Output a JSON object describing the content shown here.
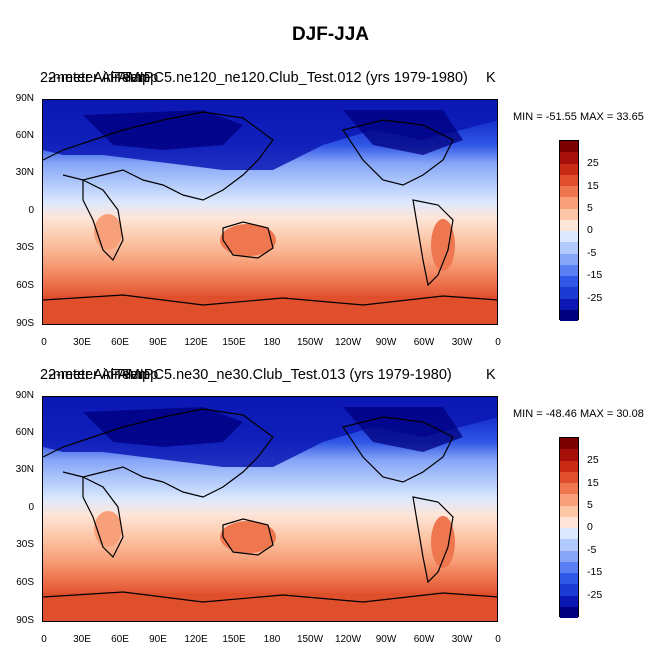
{
  "figure_title": "DJF-JJA",
  "palette": [
    "#00007f",
    "#0c18b4",
    "#1c3ad4",
    "#3157e6",
    "#5a7ff2",
    "#86a5f7",
    "#b1c9fb",
    "#dbe8fd",
    "#fde6d9",
    "#fcc6a7",
    "#f7a07a",
    "#ee7750",
    "#df4f2c",
    "#c92a15",
    "#a6100a",
    "#7c0000"
  ],
  "colorbar_labels": [
    "25",
    "15",
    "5",
    "0",
    "-5",
    "-15",
    "-25"
  ],
  "lat_ticks": [
    "90N",
    "60N",
    "30N",
    "0",
    "30S",
    "60S",
    "90S"
  ],
  "lon_ticks": [
    "0",
    "30E",
    "60E",
    "90E",
    "120E",
    "150E",
    "180",
    "150W",
    "120W",
    "90W",
    "60W",
    "30W",
    "0"
  ],
  "panels": [
    {
      "title_under": "2-meter Air Temp",
      "title_over": "2-meter Air Temp",
      "title_main": "FAMIPC5.ne120_ne120.Club_Test.012 (yrs 1979-1980)",
      "units": "K",
      "minmax": "MIN = -51.55 MAX =  33.65"
    },
    {
      "title_under": "2-meter Air Temp",
      "title_over": "2-meter Air Temp",
      "title_main": "FAMIPC5.ne30_ne30.Club_Test.013 (yrs 1979-1980)",
      "units": "K",
      "minmax": "MIN = -48.46 MAX =  30.08"
    }
  ]
}
